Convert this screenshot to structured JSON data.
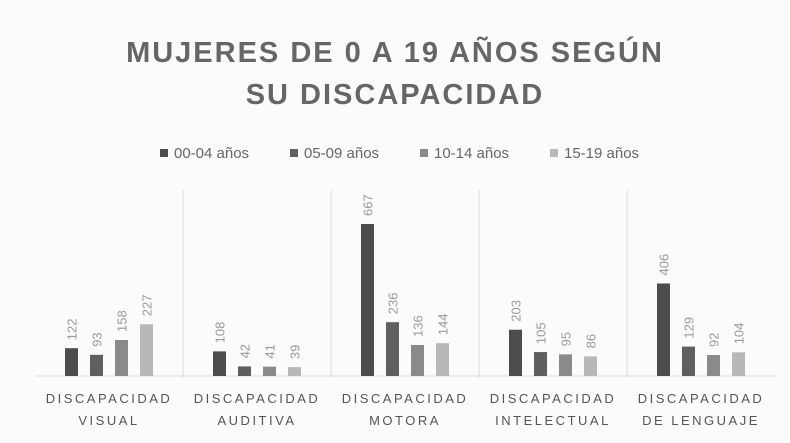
{
  "chart_data": {
    "type": "bar",
    "title": "MUJERES DE 0 A 19 AÑOS SEGÚN SU DISCAPACIDAD",
    "categories": [
      "DISCAPACIDAD VISUAL",
      "DISCAPACIDAD AUDITIVA",
      "DISCAPACIDAD MOTORA",
      "DISCAPACIDAD INTELECTUAL",
      "DISCAPACIDAD DE LENGUAJE"
    ],
    "series": [
      {
        "name": "00-04 años",
        "color": "#4d4d4d",
        "values": [
          122,
          108,
          667,
          203,
          406
        ]
      },
      {
        "name": "05-09 años",
        "color": "#5f5f5f",
        "values": [
          93,
          42,
          236,
          105,
          129
        ]
      },
      {
        "name": "10-14 años",
        "color": "#8a8a8a",
        "values": [
          158,
          41,
          136,
          95,
          92
        ]
      },
      {
        "name": "15-19 años",
        "color": "#b8b8b8",
        "values": [
          227,
          39,
          144,
          86,
          104
        ]
      }
    ]
  }
}
